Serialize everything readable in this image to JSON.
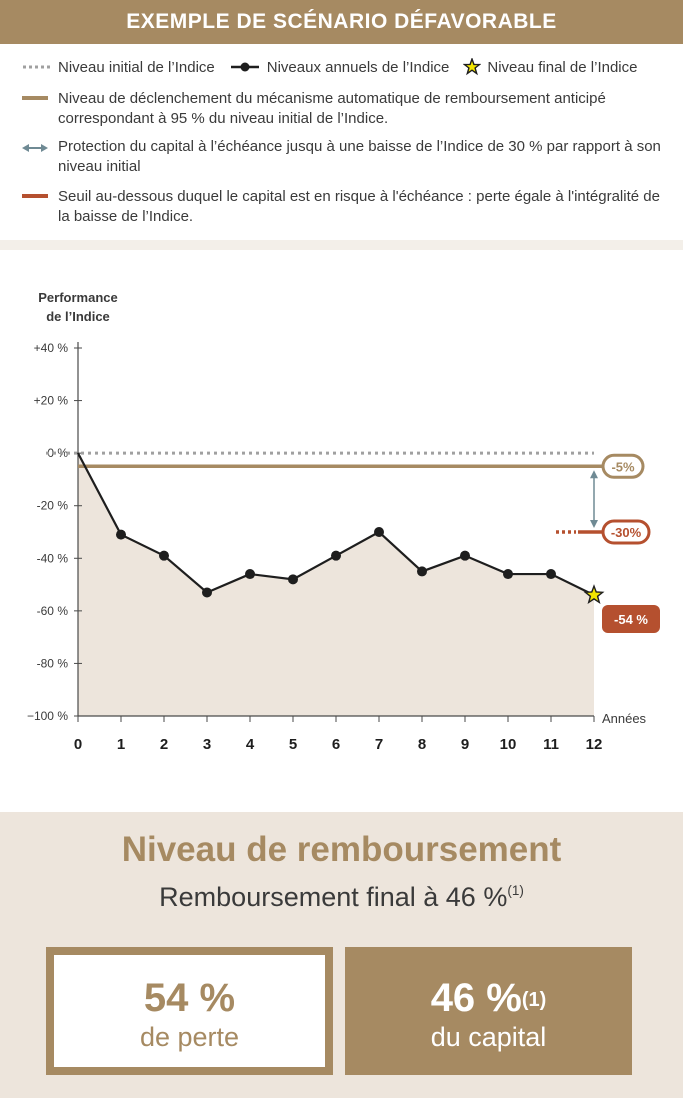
{
  "header": {
    "title": "EXEMPLE DE SCÉNARIO DÉFAVORABLE"
  },
  "legend": {
    "initial": "Niveau initial de l’Indice",
    "annual": "Niveaux annuels de l’Indice",
    "final": "Niveau final de l’Indice",
    "trigger": "Niveau de déclenchement du mécanisme automatique de remboursement anticipé correspondant à 95 % du niveau initial de l’Indice.",
    "protection": "Protection du capital à l’échéance jusqu à une baisse de l’Indice de 30 % par rapport à son niveau initial",
    "threshold": "Seuil au-dessous duquel le capital est en risque à l'échéance : perte égale à l'intégralité de la baisse de l’Indice."
  },
  "colors": {
    "gold": "#a68a62",
    "red": "#b5502f",
    "arrow": "#6f8a94",
    "area": "#ede5dc",
    "star": "#f2e600"
  },
  "chart_data": {
    "type": "line",
    "ylabel_line1": "Performance",
    "ylabel_line2": "de l’Indice",
    "xlabel": "Années",
    "x": [
      0,
      1,
      2,
      3,
      4,
      5,
      6,
      7,
      8,
      9,
      10,
      11,
      12
    ],
    "y": [
      0,
      -31,
      -39,
      -53,
      -46,
      -48,
      -39,
      -30,
      -45,
      -39,
      -46,
      -46,
      -54
    ],
    "yticks": [
      "+40 %",
      "+20 %",
      "0 %",
      "-20 %",
      "-40 %",
      "-60 %",
      "-80 %",
      "−100 %"
    ],
    "ytick_values": [
      40,
      20,
      0,
      -20,
      -40,
      -60,
      -80,
      -100
    ],
    "ylim": [
      -100,
      40
    ],
    "xlim": [
      0,
      12
    ],
    "trigger_level": -5,
    "trigger_label": "-5%",
    "protection_level": -30,
    "protection_label": "-30%",
    "final_label": "-54 %"
  },
  "summary": {
    "title": "Niveau de remboursement",
    "subtitle": "Remboursement final à 46 %",
    "subtitle_sup": "(1)",
    "loss_value": "54 %",
    "loss_label": "de perte",
    "capital_value": "46 %",
    "capital_sup": "(1)",
    "capital_label": "du capital"
  }
}
